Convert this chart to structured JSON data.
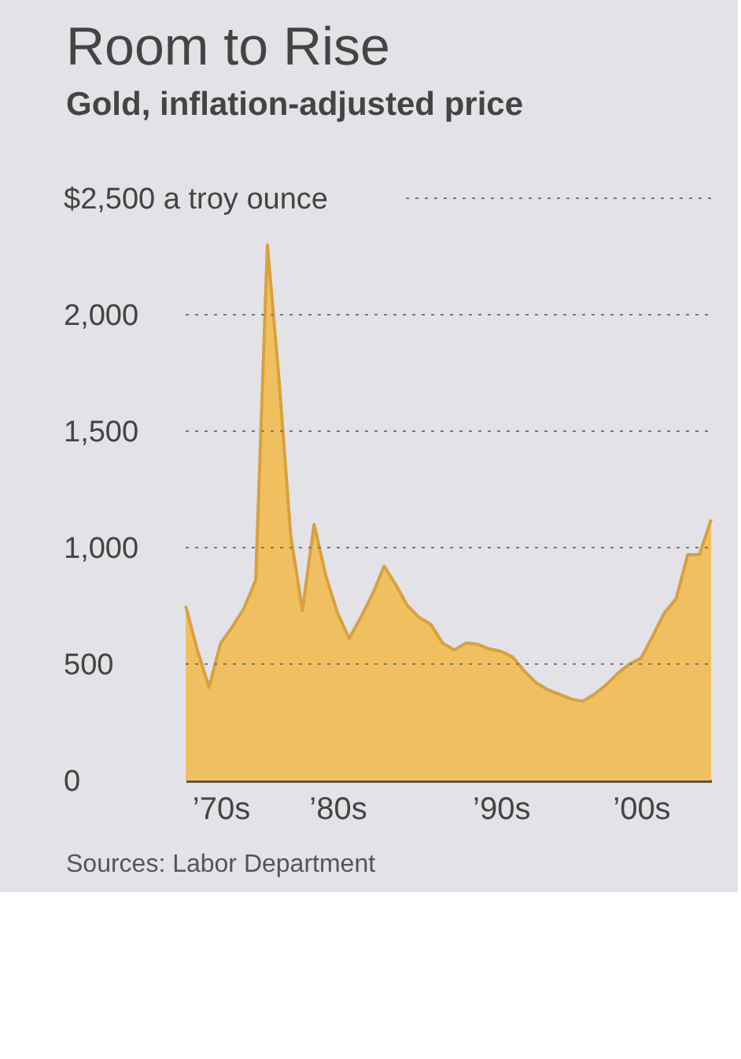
{
  "chart_data": {
    "type": "area",
    "title": "Room to Rise",
    "subtitle": "Gold, inflation-adjusted price",
    "categories": [
      null,
      null,
      null,
      "’70s",
      null,
      null,
      null,
      null,
      null,
      null,
      null,
      null,
      null,
      "’80s",
      null,
      null,
      null,
      null,
      null,
      null,
      null,
      null,
      null,
      null,
      null,
      null,
      null,
      "’90s",
      null,
      null,
      null,
      null,
      null,
      null,
      null,
      null,
      null,
      null,
      null,
      "’00s",
      null,
      null,
      null,
      null,
      null,
      null
    ],
    "series": [
      {
        "color": "#f0c060",
        "values": [
          750,
          560,
          400,
          590,
          660,
          740,
          860,
          2300,
          1720,
          1050,
          730,
          1100,
          880,
          720,
          610,
          700,
          800,
          920,
          840,
          750,
          700,
          670,
          590,
          560,
          590,
          585,
          565,
          555,
          530,
          470,
          420,
          390,
          370,
          350,
          340,
          370,
          410,
          460,
          500,
          525,
          620,
          720,
          780,
          970,
          970,
          1120
        ]
      }
    ],
    "ylim": [
      0,
      2500
    ],
    "yticks": [
      0,
      500,
      {
        "value": 1000,
        "label": "1,000"
      },
      {
        "value": 1500,
        "label": "1,500"
      },
      {
        "value": 2000,
        "label": "2,000"
      },
      {
        "value": 2500,
        "label": "$2,500 a troy ounce"
      }
    ],
    "grid": "y",
    "annotations": [
      "Sources: Labor Department"
    ]
  }
}
